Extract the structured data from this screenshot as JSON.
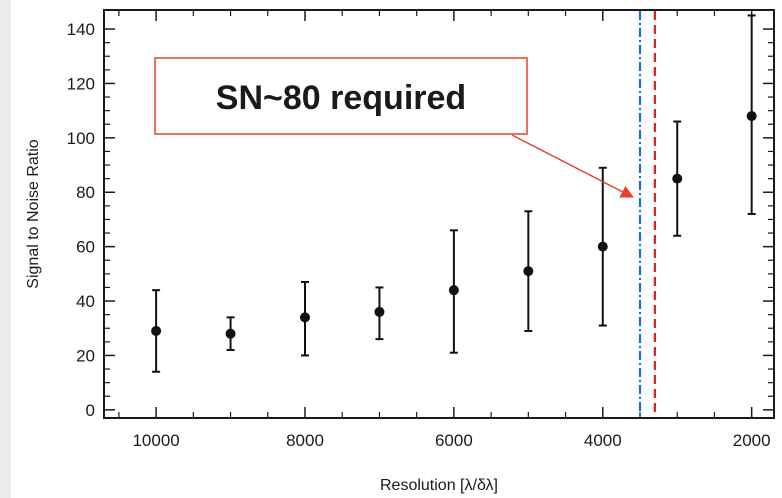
{
  "chart_data": {
    "type": "scatter",
    "title": "",
    "xlabel": "Resolution [λ/δλ]",
    "ylabel": "Signal to Noise Ratio",
    "x_reversed": true,
    "xlim": [
      10700,
      1700
    ],
    "ylim": [
      -3,
      147
    ],
    "xticks": [
      10000,
      8000,
      6000,
      4000,
      2000
    ],
    "yticks": [
      0,
      20,
      40,
      60,
      80,
      100,
      120,
      140
    ],
    "grid": false,
    "points": [
      {
        "x": 10000,
        "y": 29,
        "low": 14,
        "high": 44
      },
      {
        "x": 9000,
        "y": 28,
        "low": 22,
        "high": 34
      },
      {
        "x": 8000,
        "y": 34,
        "low": 20,
        "high": 47
      },
      {
        "x": 7000,
        "y": 36,
        "low": 26,
        "high": 45
      },
      {
        "x": 6000,
        "y": 44,
        "low": 21,
        "high": 66
      },
      {
        "x": 5000,
        "y": 51,
        "low": 29,
        "high": 73
      },
      {
        "x": 4000,
        "y": 60,
        "low": 31,
        "high": 89
      },
      {
        "x": 3000,
        "y": 85,
        "low": 64,
        "high": 106
      },
      {
        "x": 2000,
        "y": 108,
        "low": 72,
        "high": 145
      }
    ],
    "vlines": [
      {
        "x": 3500,
        "color": "#1f6fd1",
        "style": "dash-dot"
      },
      {
        "x": 3300,
        "color": "#e02020",
        "style": "dashed"
      }
    ],
    "annotation": {
      "text": "SN~80 required",
      "box_border_color": "#e8402a",
      "arrow_color": "#e8402a",
      "arrow_target": {
        "x": 3500,
        "y": 78
      }
    }
  }
}
